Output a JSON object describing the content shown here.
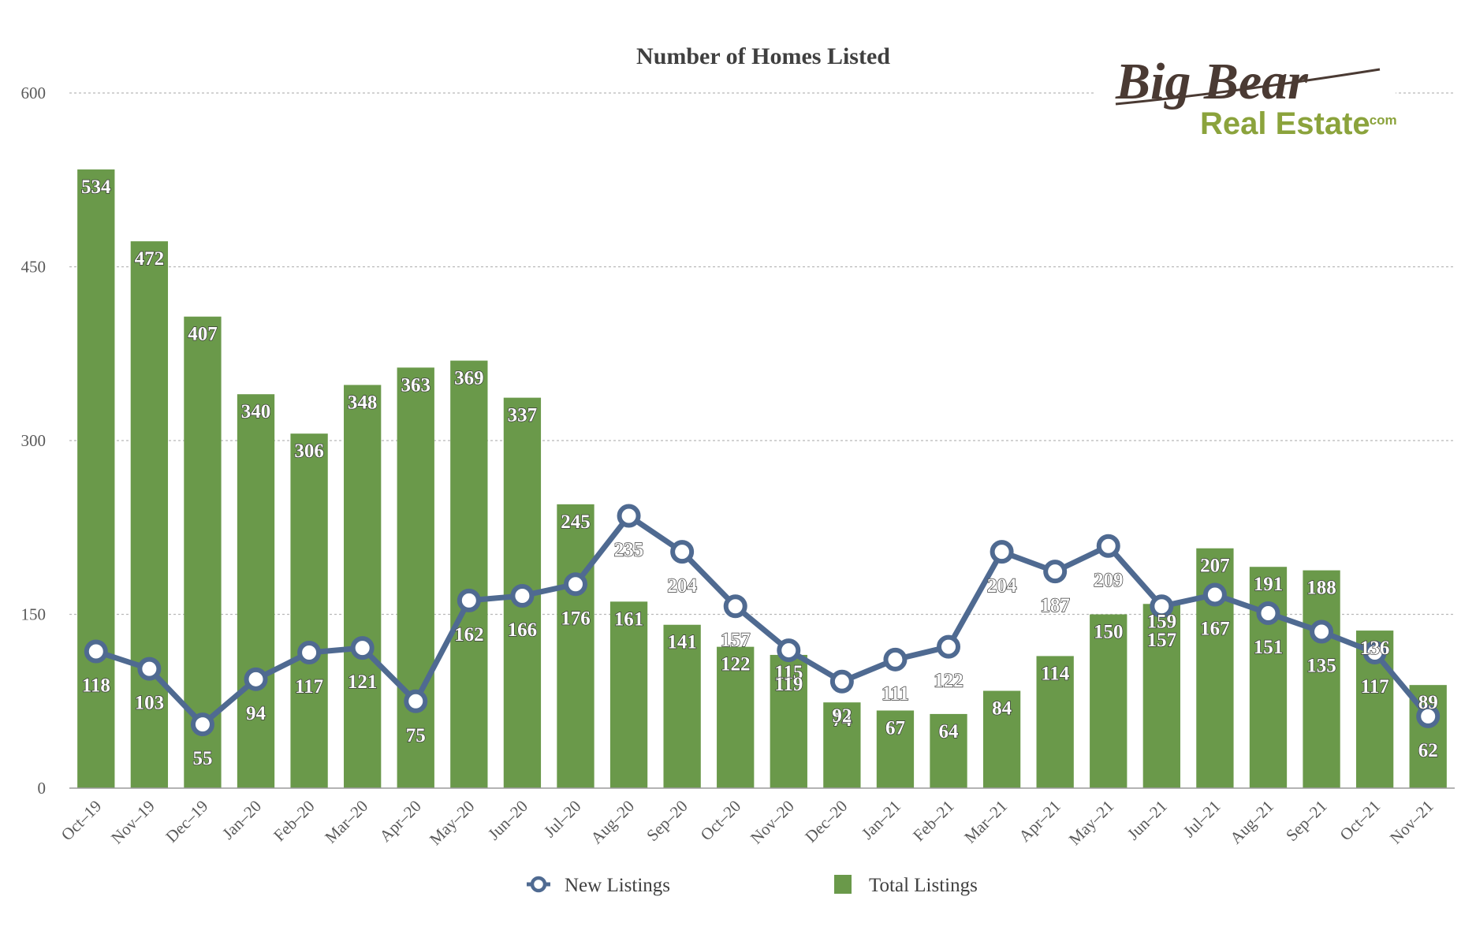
{
  "logo": {
    "big": "Big Bear",
    "re": "Real Estate",
    "com": ".com"
  },
  "chart_data": {
    "type": "bar",
    "title": "Number of Homes Listed",
    "xlabel": "",
    "ylabel": "",
    "ylim": [
      0,
      600
    ],
    "yticks": [
      0,
      150,
      300,
      450,
      600
    ],
    "grid": true,
    "legend_position": "bottom",
    "categories": [
      "Oct–19",
      "Nov–19",
      "Dec–19",
      "Jan–20",
      "Feb–20",
      "Mar–20",
      "Apr–20",
      "May–20",
      "Jun–20",
      "Jul–20",
      "Aug–20",
      "Sep–20",
      "Oct–20",
      "Nov–20",
      "Dec–20",
      "Jan–21",
      "Feb–21",
      "Mar–21",
      "Apr–21",
      "May–21",
      "Jun–21",
      "Jul–21",
      "Aug–21",
      "Sep–21",
      "Oct–21",
      "Nov–21"
    ],
    "series": [
      {
        "name": "Total Listings",
        "type": "bar",
        "color": "#6a994a",
        "values": [
          534,
          472,
          407,
          340,
          306,
          348,
          363,
          369,
          337,
          245,
          161,
          141,
          122,
          115,
          74,
          67,
          64,
          84,
          114,
          150,
          159,
          207,
          191,
          188,
          136,
          89
        ]
      },
      {
        "name": "New Listings",
        "type": "line",
        "color": "#4f6a91",
        "values": [
          118,
          103,
          55,
          94,
          117,
          121,
          75,
          162,
          166,
          176,
          235,
          204,
          157,
          119,
          92,
          111,
          122,
          204,
          187,
          209,
          157,
          167,
          151,
          135,
          117,
          62
        ]
      }
    ]
  }
}
